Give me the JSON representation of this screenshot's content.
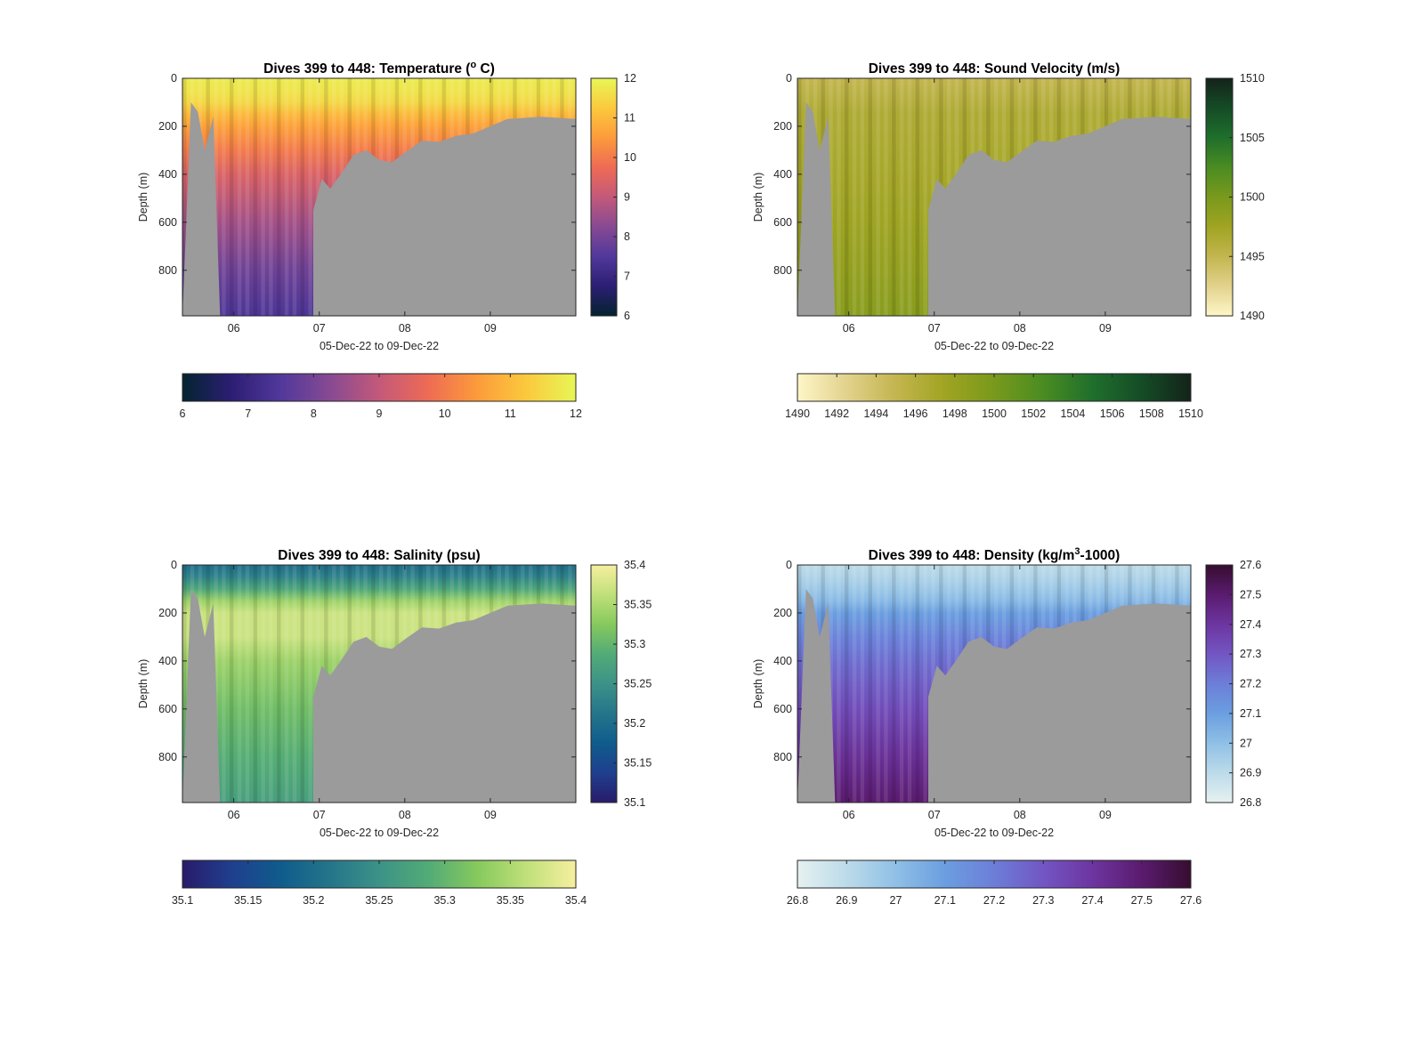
{
  "figure": {
    "background": "#ffffff",
    "bathymetry_mask_color": "#9b9b9b",
    "x_axis_label": "05-Dec-22 to 09-Dec-22",
    "y_axis_label": "Depth (m)",
    "x_range_days": [
      5.4,
      10.0
    ],
    "x_ticks": [
      {
        "value": 6,
        "label": "06"
      },
      {
        "value": 7,
        "label": "07"
      },
      {
        "value": 8,
        "label": "08"
      },
      {
        "value": 9,
        "label": "09"
      }
    ],
    "y_range_m": [
      0,
      990
    ],
    "y_reversed": true,
    "y_ticks": [
      0,
      200,
      400,
      600,
      800
    ],
    "bottom_depth_profile": [
      {
        "x": 5.4,
        "depth": 990
      },
      {
        "x": 5.5,
        "depth": 100
      },
      {
        "x": 5.58,
        "depth": 140
      },
      {
        "x": 5.66,
        "depth": 300
      },
      {
        "x": 5.76,
        "depth": 160
      },
      {
        "x": 5.84,
        "depth": 990
      },
      {
        "x": 6.93,
        "depth": 990
      },
      {
        "x": 6.93,
        "depth": 550
      },
      {
        "x": 7.03,
        "depth": 420
      },
      {
        "x": 7.13,
        "depth": 460
      },
      {
        "x": 7.25,
        "depth": 400
      },
      {
        "x": 7.4,
        "depth": 320
      },
      {
        "x": 7.55,
        "depth": 300
      },
      {
        "x": 7.7,
        "depth": 340
      },
      {
        "x": 7.85,
        "depth": 350
      },
      {
        "x": 8.0,
        "depth": 310
      },
      {
        "x": 8.2,
        "depth": 260
      },
      {
        "x": 8.4,
        "depth": 265
      },
      {
        "x": 8.6,
        "depth": 240
      },
      {
        "x": 8.8,
        "depth": 230
      },
      {
        "x": 9.0,
        "depth": 200
      },
      {
        "x": 9.2,
        "depth": 170
      },
      {
        "x": 9.4,
        "depth": 165
      },
      {
        "x": 9.6,
        "depth": 160
      },
      {
        "x": 9.8,
        "depth": 165
      },
      {
        "x": 10.0,
        "depth": 170
      }
    ]
  },
  "chart_data": [
    {
      "type": "heatmap",
      "title_main": "Dives 399 to 448: Temperature (",
      "title_sup": "o",
      "title_tail": " C)",
      "variable": "Temperature",
      "units": "°C",
      "colormap": [
        "#03232f",
        "#2c1e73",
        "#51389b",
        "#874a92",
        "#c3597a",
        "#ee6b54",
        "#fc9b3b",
        "#fbc93d",
        "#e7f757"
      ],
      "clim": [
        6,
        12
      ],
      "right_colorbar_ticks": [
        {
          "value": 6,
          "label": "6"
        },
        {
          "value": 7,
          "label": "7"
        },
        {
          "value": 8,
          "label": "8"
        },
        {
          "value": 9,
          "label": "9"
        },
        {
          "value": 10,
          "label": "10"
        },
        {
          "value": 11,
          "label": "11"
        },
        {
          "value": 12,
          "label": "12"
        }
      ],
      "bottom_colorbar_ticks": [
        {
          "value": 6,
          "label": "6"
        },
        {
          "value": 7,
          "label": "7"
        },
        {
          "value": 8,
          "label": "8"
        },
        {
          "value": 9,
          "label": "9"
        },
        {
          "value": 10,
          "label": "10"
        },
        {
          "value": 11,
          "label": "11"
        },
        {
          "value": 12,
          "label": "12"
        }
      ],
      "profile_depths_m": [
        0,
        50,
        100,
        150,
        200,
        300,
        400,
        600,
        800,
        990
      ],
      "profile_values": [
        11.8,
        11.7,
        11.5,
        11.0,
        10.6,
        10.0,
        9.4,
        8.6,
        7.9,
        7.4
      ]
    },
    {
      "type": "heatmap",
      "title_main": "Dives 399 to 448: Sound Velocity (m/s)",
      "title_sup": "",
      "title_tail": "",
      "variable": "Sound Velocity",
      "units": "m/s",
      "colormap": [
        "#fef6c8",
        "#e2d28d",
        "#c3b54f",
        "#a0a422",
        "#79991c",
        "#4a8c22",
        "#1f6f2c",
        "#154c26",
        "#14231a"
      ],
      "clim": [
        1490,
        1510
      ],
      "right_colorbar_ticks": [
        {
          "value": 1490,
          "label": "1490"
        },
        {
          "value": 1495,
          "label": "1495"
        },
        {
          "value": 1500,
          "label": "1500"
        },
        {
          "value": 1505,
          "label": "1505"
        },
        {
          "value": 1510,
          "label": "1510"
        }
      ],
      "bottom_colorbar_ticks": [
        {
          "value": 1490,
          "label": "1490"
        },
        {
          "value": 1492,
          "label": "1492"
        },
        {
          "value": 1494,
          "label": "1494"
        },
        {
          "value": 1496,
          "label": "1496"
        },
        {
          "value": 1498,
          "label": "1498"
        },
        {
          "value": 1500,
          "label": "1500"
        },
        {
          "value": 1502,
          "label": "1502"
        },
        {
          "value": 1504,
          "label": "1504"
        },
        {
          "value": 1506,
          "label": "1506"
        },
        {
          "value": 1508,
          "label": "1508"
        },
        {
          "value": 1510,
          "label": "1510"
        }
      ],
      "profile_depths_m": [
        0,
        50,
        100,
        150,
        200,
        300,
        400,
        600,
        800,
        990
      ],
      "profile_values": [
        1495.0,
        1495.5,
        1496.0,
        1496.5,
        1496.5,
        1496.8,
        1497.0,
        1497.6,
        1498.3,
        1499.0
      ]
    },
    {
      "type": "heatmap",
      "title_main": "Dives 399 to 448: Salinity (psu)",
      "title_sup": "",
      "title_tail": "",
      "variable": "Salinity",
      "units": "psu",
      "colormap": [
        "#281b6a",
        "#1f3f8e",
        "#0f5c8c",
        "#25758a",
        "#3c9287",
        "#52ab77",
        "#86c95d",
        "#c0e07a",
        "#f6ef9f"
      ],
      "clim": [
        35.1,
        35.4
      ],
      "right_colorbar_ticks": [
        {
          "value": 35.1,
          "label": "35.1"
        },
        {
          "value": 35.15,
          "label": "35.15"
        },
        {
          "value": 35.2,
          "label": "35.2"
        },
        {
          "value": 35.25,
          "label": "35.25"
        },
        {
          "value": 35.3,
          "label": "35.3"
        },
        {
          "value": 35.35,
          "label": "35.35"
        },
        {
          "value": 35.4,
          "label": "35.4"
        }
      ],
      "bottom_colorbar_ticks": [
        {
          "value": 35.1,
          "label": "35.1"
        },
        {
          "value": 35.15,
          "label": "35.15"
        },
        {
          "value": 35.2,
          "label": "35.2"
        },
        {
          "value": 35.25,
          "label": "35.25"
        },
        {
          "value": 35.3,
          "label": "35.3"
        },
        {
          "value": 35.35,
          "label": "35.35"
        },
        {
          "value": 35.4,
          "label": "35.4"
        }
      ],
      "profile_depths_m": [
        0,
        50,
        100,
        150,
        200,
        300,
        400,
        600,
        800,
        990
      ],
      "profile_values": [
        35.2,
        35.23,
        35.28,
        35.34,
        35.37,
        35.37,
        35.34,
        35.31,
        35.29,
        35.27
      ]
    },
    {
      "type": "heatmap",
      "title_main": "Dives 399 to 448: Density (kg/m",
      "title_sup": "3",
      "title_tail": "-1000)",
      "variable": "Density",
      "units": "kg/m^3 - 1000",
      "colormap": [
        "#e6f1f1",
        "#bcdbe9",
        "#8fc0e6",
        "#6b9ee0",
        "#6c7ed8",
        "#7256c3",
        "#6d35a0",
        "#5a1b6f",
        "#360d2f"
      ],
      "clim": [
        26.8,
        27.6
      ],
      "right_colorbar_ticks": [
        {
          "value": 26.8,
          "label": "26.8"
        },
        {
          "value": 26.9,
          "label": "26.9"
        },
        {
          "value": 27.0,
          "label": "27"
        },
        {
          "value": 27.1,
          "label": "27.1"
        },
        {
          "value": 27.2,
          "label": "27.2"
        },
        {
          "value": 27.3,
          "label": "27.3"
        },
        {
          "value": 27.4,
          "label": "27.4"
        },
        {
          "value": 27.5,
          "label": "27.5"
        },
        {
          "value": 27.6,
          "label": "27.6"
        }
      ],
      "bottom_colorbar_ticks": [
        {
          "value": 26.8,
          "label": "26.8"
        },
        {
          "value": 26.9,
          "label": "26.9"
        },
        {
          "value": 27.0,
          "label": "27"
        },
        {
          "value": 27.1,
          "label": "27.1"
        },
        {
          "value": 27.2,
          "label": "27.2"
        },
        {
          "value": 27.3,
          "label": "27.3"
        },
        {
          "value": 27.4,
          "label": "27.4"
        },
        {
          "value": 27.5,
          "label": "27.5"
        },
        {
          "value": 27.6,
          "label": "27.6"
        }
      ],
      "profile_depths_m": [
        0,
        50,
        100,
        150,
        200,
        300,
        400,
        600,
        800,
        990
      ],
      "profile_values": [
        26.9,
        26.93,
        26.97,
        27.02,
        27.1,
        27.18,
        27.24,
        27.33,
        27.42,
        27.5
      ]
    }
  ]
}
